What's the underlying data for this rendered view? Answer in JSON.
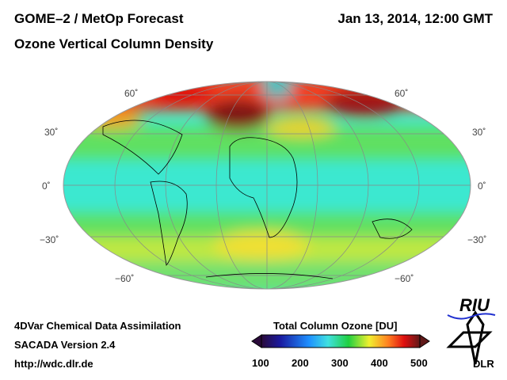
{
  "header": {
    "title": "GOME–2 / MetOp Forecast",
    "subtitle": "Ozone Vertical Column Density",
    "datetime": "Jan 13, 2014, 12:00 GMT"
  },
  "map": {
    "lat_labels": [
      "60˚",
      "30˚",
      "0˚",
      "−30˚",
      "−60˚"
    ]
  },
  "footer": {
    "line1": "4DVar Chemical Data Assimilation",
    "line2": "SACADA Version 2.4",
    "url": "http://wdc.dlr.de"
  },
  "colorbar": {
    "title": "Total Column Ozone [DU]",
    "ticks": [
      "100",
      "200",
      "300",
      "400",
      "500"
    ],
    "colors": [
      "#2a0a3a",
      "#1a1aa0",
      "#1e90ff",
      "#40e0e0",
      "#20d040",
      "#f0f030",
      "#ff8020",
      "#e01010",
      "#601818"
    ]
  },
  "logos": {
    "riu": "RIU",
    "dlr": "DLR"
  }
}
